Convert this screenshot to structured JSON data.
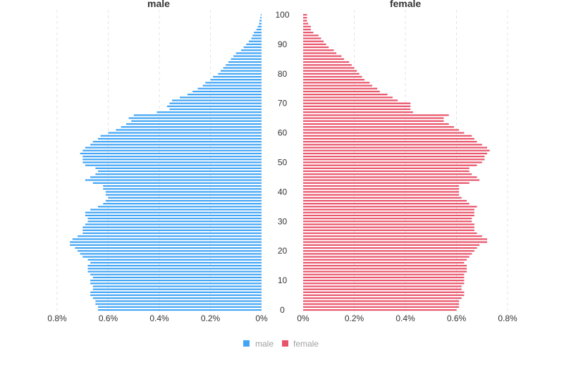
{
  "chart_data": {
    "type": "bar",
    "orientation": "horizontal",
    "layout": "population-pyramid",
    "titles": [
      "male",
      "female"
    ],
    "x_ticks": [
      "0%",
      "0.2%",
      "0.4%",
      "0.6%",
      "0.8%"
    ],
    "x_range_percent": [
      0,
      0.8
    ],
    "age_ticks": [
      "0",
      "10",
      "20",
      "30",
      "40",
      "50",
      "60",
      "70",
      "80",
      "90",
      "100"
    ],
    "ages": [
      0,
      1,
      2,
      3,
      4,
      5,
      6,
      7,
      8,
      9,
      10,
      11,
      12,
      13,
      14,
      15,
      16,
      17,
      18,
      19,
      20,
      21,
      22,
      23,
      24,
      25,
      26,
      27,
      28,
      29,
      30,
      31,
      32,
      33,
      34,
      35,
      36,
      37,
      38,
      39,
      40,
      41,
      42,
      43,
      44,
      45,
      46,
      47,
      48,
      49,
      50,
      51,
      52,
      53,
      54,
      55,
      56,
      57,
      58,
      59,
      60,
      61,
      62,
      63,
      64,
      65,
      66,
      67,
      68,
      69,
      70,
      71,
      72,
      73,
      74,
      75,
      76,
      77,
      78,
      79,
      80,
      81,
      82,
      83,
      84,
      85,
      86,
      87,
      88,
      89,
      90,
      91,
      92,
      93,
      94,
      95,
      96,
      97,
      98,
      99,
      100
    ],
    "grid": true,
    "legend_position": "bottom",
    "series": [
      {
        "name": "male",
        "color": "#42a5f5",
        "values": [
          0.64,
          0.64,
          0.65,
          0.65,
          0.66,
          0.67,
          0.67,
          0.66,
          0.66,
          0.67,
          0.67,
          0.66,
          0.67,
          0.68,
          0.68,
          0.68,
          0.67,
          0.68,
          0.7,
          0.71,
          0.72,
          0.73,
          0.75,
          0.75,
          0.74,
          0.72,
          0.7,
          0.7,
          0.7,
          0.69,
          0.68,
          0.68,
          0.69,
          0.69,
          0.67,
          0.64,
          0.62,
          0.61,
          0.6,
          0.61,
          0.61,
          0.62,
          0.62,
          0.66,
          0.69,
          0.67,
          0.65,
          0.64,
          0.65,
          0.69,
          0.7,
          0.7,
          0.7,
          0.71,
          0.7,
          0.69,
          0.67,
          0.66,
          0.64,
          0.63,
          0.6,
          0.57,
          0.55,
          0.53,
          0.51,
          0.52,
          0.5,
          0.41,
          0.36,
          0.37,
          0.36,
          0.35,
          0.32,
          0.29,
          0.27,
          0.25,
          0.23,
          0.22,
          0.2,
          0.19,
          0.17,
          0.16,
          0.15,
          0.14,
          0.13,
          0.12,
          0.11,
          0.1,
          0.08,
          0.07,
          0.06,
          0.05,
          0.04,
          0.035,
          0.03,
          0.02,
          0.015,
          0.01,
          0.008,
          0.005,
          0.003
        ]
      },
      {
        "name": "female",
        "color": "#e9546b",
        "values": [
          0.6,
          0.61,
          0.61,
          0.61,
          0.62,
          0.63,
          0.63,
          0.62,
          0.62,
          0.63,
          0.63,
          0.63,
          0.63,
          0.64,
          0.64,
          0.64,
          0.63,
          0.64,
          0.65,
          0.66,
          0.67,
          0.68,
          0.69,
          0.72,
          0.72,
          0.7,
          0.68,
          0.67,
          0.67,
          0.67,
          0.66,
          0.66,
          0.67,
          0.67,
          0.67,
          0.68,
          0.65,
          0.64,
          0.62,
          0.61,
          0.61,
          0.61,
          0.61,
          0.65,
          0.69,
          0.68,
          0.66,
          0.65,
          0.65,
          0.68,
          0.7,
          0.71,
          0.71,
          0.72,
          0.73,
          0.72,
          0.7,
          0.68,
          0.67,
          0.66,
          0.63,
          0.61,
          0.59,
          0.57,
          0.55,
          0.55,
          0.57,
          0.43,
          0.42,
          0.42,
          0.42,
          0.37,
          0.35,
          0.33,
          0.3,
          0.29,
          0.27,
          0.26,
          0.24,
          0.23,
          0.22,
          0.21,
          0.2,
          0.19,
          0.18,
          0.16,
          0.15,
          0.13,
          0.12,
          0.1,
          0.09,
          0.08,
          0.07,
          0.06,
          0.04,
          0.03,
          0.03,
          0.02,
          0.015,
          0.015,
          0.015
        ]
      }
    ]
  }
}
